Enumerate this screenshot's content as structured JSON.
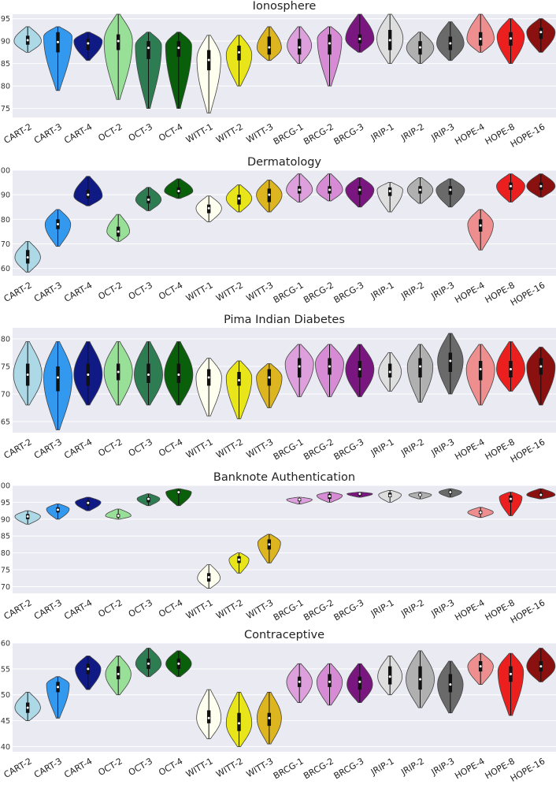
{
  "chart_data": [
    {
      "type": "violin",
      "title": "Ionosphere",
      "ylim": [
        73,
        96
      ],
      "yticks": [
        75,
        80,
        85,
        90,
        95
      ],
      "categories": [
        "CART-2",
        "CART-3",
        "CART-4",
        "OCT-2",
        "OCT-3",
        "OCT-4",
        "WITT-1",
        "WITT-2",
        "WITT-3",
        "BRCG-1",
        "BRCG-2",
        "BRCG-3",
        "JRIP-1",
        "JRIP-2",
        "JRIP-3",
        "HOPE-4",
        "HOPE-8",
        "HOPE-16"
      ],
      "series": [
        {
          "min": 87.5,
          "max": 93.2,
          "q1": 89.2,
          "median": 90.2,
          "q3": 91.2,
          "mode": 90.0,
          "wmax": 4.8
        },
        {
          "min": 79.0,
          "max": 93.2,
          "q1": 87.5,
          "median": 89.8,
          "q3": 92.0,
          "mode": 91.0,
          "wmax": 5.0
        },
        {
          "min": 85.7,
          "max": 92.0,
          "q1": 88.0,
          "median": 89.5,
          "q3": 90.5,
          "mode": 90.0,
          "wmax": 5.0
        },
        {
          "min": 77.0,
          "max": 96.0,
          "q1": 88.0,
          "median": 90.0,
          "q3": 91.5,
          "mode": 90.0,
          "wmax": 5.0
        },
        {
          "min": 75.0,
          "max": 92.0,
          "q1": 86.0,
          "median": 88.5,
          "q3": 90.0,
          "mode": 89.0,
          "wmax": 4.6
        },
        {
          "min": 75.0,
          "max": 92.0,
          "q1": 86.5,
          "median": 88.5,
          "q3": 90.0,
          "mode": 89.0,
          "wmax": 4.6
        },
        {
          "min": 74.0,
          "max": 91.3,
          "q1": 83.5,
          "median": 85.8,
          "q3": 88.0,
          "mode": 86.0,
          "wmax": 4.2
        },
        {
          "min": 80.0,
          "max": 91.3,
          "q1": 85.7,
          "median": 87.5,
          "q3": 89.0,
          "mode": 87.0,
          "wmax": 4.5
        },
        {
          "min": 85.7,
          "max": 93.2,
          "q1": 87.0,
          "median": 88.6,
          "q3": 91.0,
          "mode": 88.5,
          "wmax": 4.3
        },
        {
          "min": 85.0,
          "max": 93.2,
          "q1": 87.0,
          "median": 88.6,
          "q3": 90.5,
          "mode": 89.0,
          "wmax": 4.3
        },
        {
          "min": 80.0,
          "max": 93.2,
          "q1": 87.0,
          "median": 89.5,
          "q3": 91.5,
          "mode": 90.5,
          "wmax": 4.3
        },
        {
          "min": 87.5,
          "max": 96.0,
          "q1": 89.5,
          "median": 90.5,
          "q3": 91.5,
          "mode": 90.5,
          "wmax": 5.0
        },
        {
          "min": 85.0,
          "max": 96.0,
          "q1": 88.0,
          "median": 90.2,
          "q3": 92.5,
          "mode": 90.5,
          "wmax": 4.6
        },
        {
          "min": 85.0,
          "max": 92.0,
          "q1": 87.0,
          "median": 88.6,
          "q3": 90.0,
          "mode": 88.5,
          "wmax": 4.8
        },
        {
          "min": 85.7,
          "max": 94.3,
          "q1": 88.0,
          "median": 89.5,
          "q3": 91.0,
          "mode": 89.5,
          "wmax": 4.8
        },
        {
          "min": 87.5,
          "max": 96.0,
          "q1": 89.0,
          "median": 90.5,
          "q3": 92.0,
          "mode": 90.5,
          "wmax": 4.8
        },
        {
          "min": 85.0,
          "max": 95.0,
          "q1": 89.0,
          "median": 90.6,
          "q3": 92.0,
          "mode": 91.0,
          "wmax": 4.8
        },
        {
          "min": 87.5,
          "max": 95.0,
          "q1": 90.5,
          "median": 92.0,
          "q3": 93.0,
          "mode": 92.0,
          "wmax": 5.0
        }
      ]
    },
    {
      "type": "violin",
      "title": "Dermatology",
      "ylim": [
        57,
        100
      ],
      "yticks": [
        60,
        70,
        80,
        90,
        100
      ],
      "categories": [
        "CART-2",
        "CART-3",
        "CART-4",
        "OCT-2",
        "OCT-3",
        "OCT-4",
        "WITT-1",
        "WITT-2",
        "WITT-3",
        "BRCG-1",
        "BRCG-2",
        "BRCG-3",
        "JRIP-1",
        "JRIP-2",
        "JRIP-3",
        "HOPE-4",
        "HOPE-8",
        "HOPE-16"
      ],
      "series": [
        {
          "min": 58.5,
          "max": 71.0,
          "q1": 62.0,
          "median": 64.5,
          "q3": 67.5,
          "mode": 64.5,
          "wmax": 4.5
        },
        {
          "min": 69.0,
          "max": 84.0,
          "q1": 76.0,
          "median": 78.0,
          "q3": 80.0,
          "mode": 78.0,
          "wmax": 4.5
        },
        {
          "min": 85.5,
          "max": 97.5,
          "q1": 88.5,
          "median": 90.0,
          "q3": 92.0,
          "mode": 89.5,
          "wmax": 5.0
        },
        {
          "min": 71.0,
          "max": 82.0,
          "q1": 73.0,
          "median": 75.0,
          "q3": 77.0,
          "mode": 75.0,
          "wmax": 4.0
        },
        {
          "min": 83.5,
          "max": 93.0,
          "q1": 86.5,
          "median": 88.0,
          "q3": 89.5,
          "mode": 88.0,
          "wmax": 4.5
        },
        {
          "min": 88.5,
          "max": 96.5,
          "q1": 90.5,
          "median": 91.5,
          "q3": 93.0,
          "mode": 91.5,
          "wmax": 5.0
        },
        {
          "min": 79.0,
          "max": 89.5,
          "q1": 82.5,
          "median": 84.5,
          "q3": 86.0,
          "mode": 84.5,
          "wmax": 4.5
        },
        {
          "min": 83.0,
          "max": 94.0,
          "q1": 86.0,
          "median": 88.5,
          "q3": 90.0,
          "mode": 88.5,
          "wmax": 4.5
        },
        {
          "min": 83.0,
          "max": 96.0,
          "q1": 87.0,
          "median": 90.0,
          "q3": 92.5,
          "mode": 90.0,
          "wmax": 4.5
        },
        {
          "min": 87.0,
          "max": 98.5,
          "q1": 90.5,
          "median": 92.0,
          "q3": 93.5,
          "mode": 92.0,
          "wmax": 4.6
        },
        {
          "min": 87.5,
          "max": 98.5,
          "q1": 90.5,
          "median": 92.0,
          "q3": 93.5,
          "mode": 92.0,
          "wmax": 4.6
        },
        {
          "min": 85.0,
          "max": 97.0,
          "q1": 90.0,
          "median": 92.0,
          "q3": 93.5,
          "mode": 92.0,
          "wmax": 5.0
        },
        {
          "min": 83.0,
          "max": 95.0,
          "q1": 89.5,
          "median": 91.5,
          "q3": 93.0,
          "mode": 92.0,
          "wmax": 4.5
        },
        {
          "min": 86.5,
          "max": 97.0,
          "q1": 90.5,
          "median": 92.0,
          "q3": 93.5,
          "mode": 92.0,
          "wmax": 4.5
        },
        {
          "min": 85.0,
          "max": 96.5,
          "q1": 90.0,
          "median": 92.0,
          "q3": 93.5,
          "mode": 92.0,
          "wmax": 5.0
        },
        {
          "min": 67.5,
          "max": 84.0,
          "q1": 75.0,
          "median": 77.5,
          "q3": 80.0,
          "mode": 78.0,
          "wmax": 4.5
        },
        {
          "min": 87.0,
          "max": 98.5,
          "q1": 92.0,
          "median": 93.5,
          "q3": 95.0,
          "mode": 93.5,
          "wmax": 5.0
        },
        {
          "min": 89.0,
          "max": 98.5,
          "q1": 92.0,
          "median": 93.5,
          "q3": 95.0,
          "mode": 93.5,
          "wmax": 5.0
        }
      ]
    },
    {
      "type": "violin",
      "title": "Pima Indian Diabetes",
      "ylim": [
        63,
        82
      ],
      "yticks": [
        65,
        70,
        75,
        80
      ],
      "categories": [
        "CART-2",
        "CART-3",
        "CART-4",
        "OCT-2",
        "OCT-3",
        "OCT-4",
        "WITT-1",
        "WITT-2",
        "WITT-3",
        "BRCG-1",
        "BRCG-2",
        "BRCG-3",
        "JRIP-1",
        "JRIP-2",
        "JRIP-3",
        "HOPE-4",
        "HOPE-8",
        "HOPE-16"
      ],
      "series": [
        {
          "min": 68.0,
          "max": 79.5,
          "q1": 71.5,
          "median": 73.5,
          "q3": 75.5,
          "mode": 73.5,
          "wmax": 5.0
        },
        {
          "min": 63.5,
          "max": 79.5,
          "q1": 70.5,
          "median": 73.0,
          "q3": 75.0,
          "mode": 73.0,
          "wmax": 5.0
        },
        {
          "min": 68.0,
          "max": 79.5,
          "q1": 71.5,
          "median": 73.5,
          "q3": 75.5,
          "mode": 73.5,
          "wmax": 5.0
        },
        {
          "min": 68.0,
          "max": 79.5,
          "q1": 72.5,
          "median": 74.0,
          "q3": 75.5,
          "mode": 74.0,
          "wmax": 5.0
        },
        {
          "min": 68.0,
          "max": 79.5,
          "q1": 72.0,
          "median": 73.5,
          "q3": 75.5,
          "mode": 73.5,
          "wmax": 5.0
        },
        {
          "min": 68.0,
          "max": 79.5,
          "q1": 72.0,
          "median": 73.5,
          "q3": 75.5,
          "mode": 73.5,
          "wmax": 5.0
        },
        {
          "min": 66.0,
          "max": 76.5,
          "q1": 71.5,
          "median": 73.0,
          "q3": 74.5,
          "mode": 73.0,
          "wmax": 4.5
        },
        {
          "min": 65.5,
          "max": 76.0,
          "q1": 71.5,
          "median": 72.5,
          "q3": 74.0,
          "mode": 73.0,
          "wmax": 4.5
        },
        {
          "min": 67.5,
          "max": 75.5,
          "q1": 71.5,
          "median": 73.0,
          "q3": 74.5,
          "mode": 73.0,
          "wmax": 4.5
        },
        {
          "min": 69.5,
          "max": 79.0,
          "q1": 73.0,
          "median": 75.0,
          "q3": 76.5,
          "mode": 75.5,
          "wmax": 5.0
        },
        {
          "min": 69.5,
          "max": 79.0,
          "q1": 73.5,
          "median": 75.0,
          "q3": 76.5,
          "mode": 75.5,
          "wmax": 5.0
        },
        {
          "min": 69.5,
          "max": 79.0,
          "q1": 73.0,
          "median": 74.5,
          "q3": 76.0,
          "mode": 74.5,
          "wmax": 5.0
        },
        {
          "min": 70.5,
          "max": 77.5,
          "q1": 73.0,
          "median": 74.0,
          "q3": 75.5,
          "mode": 74.0,
          "wmax": 4.0
        },
        {
          "min": 68.5,
          "max": 79.0,
          "q1": 73.0,
          "median": 75.0,
          "q3": 76.5,
          "mode": 75.0,
          "wmax": 4.5
        },
        {
          "min": 70.0,
          "max": 81.0,
          "q1": 74.0,
          "median": 76.0,
          "q3": 77.5,
          "mode": 76.0,
          "wmax": 4.5
        },
        {
          "min": 68.0,
          "max": 79.0,
          "q1": 72.5,
          "median": 74.5,
          "q3": 76.0,
          "mode": 74.5,
          "wmax": 5.0
        },
        {
          "min": 70.5,
          "max": 79.5,
          "q1": 73.0,
          "median": 74.5,
          "q3": 76.0,
          "mode": 74.5,
          "wmax": 5.0
        },
        {
          "min": 68.0,
          "max": 78.5,
          "q1": 73.5,
          "median": 75.0,
          "q3": 76.5,
          "mode": 75.0,
          "wmax": 5.0
        }
      ]
    },
    {
      "type": "violin",
      "title": "Banknote Authentication",
      "ylim": [
        68,
        100
      ],
      "yticks": [
        70,
        75,
        80,
        85,
        90,
        95,
        100
      ],
      "categories": [
        "CART-2",
        "CART-3",
        "CART-4",
        "OCT-2",
        "OCT-3",
        "OCT-4",
        "WITT-1",
        "WITT-2",
        "WITT-3",
        "BRCG-1",
        "BRCG-2",
        "BRCG-3",
        "JRIP-1",
        "JRIP-2",
        "JRIP-3",
        "HOPE-4",
        "HOPE-8",
        "HOPE-16"
      ],
      "series": [
        {
          "min": 88.5,
          "max": 92.5,
          "q1": 90.0,
          "median": 90.8,
          "q3": 91.5,
          "mode": 90.8,
          "wmax": 4.5
        },
        {
          "min": 90.0,
          "max": 94.5,
          "q1": 92.0,
          "median": 92.8,
          "q3": 93.5,
          "mode": 93.0,
          "wmax": 4.0
        },
        {
          "min": 92.5,
          "max": 96.5,
          "q1": 94.0,
          "median": 94.8,
          "q3": 95.5,
          "mode": 95.0,
          "wmax": 4.5
        },
        {
          "min": 90.0,
          "max": 93.0,
          "q1": 90.5,
          "median": 91.0,
          "q3": 91.5,
          "mode": 91.0,
          "wmax": 4.5
        },
        {
          "min": 94.0,
          "max": 97.5,
          "q1": 95.0,
          "median": 96.0,
          "q3": 96.5,
          "mode": 96.0,
          "wmax": 4.0
        },
        {
          "min": 94.0,
          "max": 99.0,
          "q1": 97.5,
          "median": 98.0,
          "q3": 98.5,
          "mode": 98.0,
          "wmax": 4.5
        },
        {
          "min": 69.5,
          "max": 76.5,
          "q1": 71.5,
          "median": 72.8,
          "q3": 74.0,
          "mode": 72.5,
          "wmax": 4.0
        },
        {
          "min": 74.0,
          "max": 80.0,
          "q1": 77.0,
          "median": 78.0,
          "q3": 79.0,
          "mode": 78.0,
          "wmax": 3.5
        },
        {
          "min": 77.0,
          "max": 85.5,
          "q1": 81.0,
          "median": 82.5,
          "q3": 84.0,
          "mode": 83.0,
          "wmax": 4.0
        },
        {
          "min": 94.5,
          "max": 96.5,
          "q1": 95.3,
          "median": 95.8,
          "q3": 96.2,
          "mode": 95.8,
          "wmax": 4.5
        },
        {
          "min": 95.0,
          "max": 98.0,
          "q1": 96.0,
          "median": 96.8,
          "q3": 97.5,
          "mode": 97.0,
          "wmax": 4.5
        },
        {
          "min": 96.5,
          "max": 98.0,
          "q1": 97.0,
          "median": 97.5,
          "q3": 97.8,
          "mode": 97.5,
          "wmax": 4.5
        },
        {
          "min": 95.0,
          "max": 98.5,
          "q1": 96.5,
          "median": 97.0,
          "q3": 97.8,
          "mode": 97.2,
          "wmax": 4.0
        },
        {
          "min": 96.0,
          "max": 98.0,
          "q1": 96.8,
          "median": 97.2,
          "q3": 97.6,
          "mode": 97.2,
          "wmax": 4.0
        },
        {
          "min": 96.5,
          "max": 99.0,
          "q1": 97.5,
          "median": 98.0,
          "q3": 98.5,
          "mode": 98.0,
          "wmax": 4.0
        },
        {
          "min": 90.5,
          "max": 93.5,
          "q1": 91.5,
          "median": 92.0,
          "q3": 92.5,
          "mode": 92.0,
          "wmax": 4.5
        },
        {
          "min": 91.0,
          "max": 98.0,
          "q1": 95.0,
          "median": 96.0,
          "q3": 97.0,
          "mode": 96.5,
          "wmax": 4.0
        },
        {
          "min": 96.0,
          "max": 99.0,
          "q1": 96.8,
          "median": 97.2,
          "q3": 97.8,
          "mode": 97.2,
          "wmax": 5.0
        }
      ]
    },
    {
      "type": "violin",
      "title": "Contraceptive",
      "ylim": [
        39,
        60
      ],
      "yticks": [
        40,
        45,
        50,
        55,
        60
      ],
      "categories": [
        "CART-2",
        "CART-3",
        "CART-4",
        "OCT-2",
        "OCT-3",
        "OCT-4",
        "WITT-1",
        "WITT-2",
        "WITT-3",
        "BRCG-1",
        "BRCG-2",
        "BRCG-3",
        "JRIP-1",
        "JRIP-2",
        "JRIP-3",
        "HOPE-4",
        "HOPE-8",
        "HOPE-16"
      ],
      "series": [
        {
          "min": 45.0,
          "max": 50.5,
          "q1": 46.5,
          "median": 47.5,
          "q3": 48.5,
          "mode": 47.5,
          "wmax": 4.5
        },
        {
          "min": 45.5,
          "max": 53.5,
          "q1": 50.5,
          "median": 51.5,
          "q3": 52.5,
          "mode": 52.0,
          "wmax": 4.0
        },
        {
          "min": 51.0,
          "max": 57.5,
          "q1": 54.0,
          "median": 55.0,
          "q3": 56.0,
          "mode": 55.0,
          "wmax": 4.5
        },
        {
          "min": 50.0,
          "max": 57.5,
          "q1": 53.0,
          "median": 54.0,
          "q3": 55.5,
          "mode": 54.0,
          "wmax": 4.5
        },
        {
          "min": 53.5,
          "max": 59.0,
          "q1": 55.0,
          "median": 56.0,
          "q3": 57.0,
          "mode": 56.0,
          "wmax": 4.5
        },
        {
          "min": 53.5,
          "max": 58.5,
          "q1": 55.0,
          "median": 56.0,
          "q3": 57.0,
          "mode": 56.0,
          "wmax": 4.5
        },
        {
          "min": 41.5,
          "max": 51.0,
          "q1": 44.5,
          "median": 45.5,
          "q3": 47.0,
          "mode": 45.5,
          "wmax": 4.3
        },
        {
          "min": 40.0,
          "max": 50.5,
          "q1": 43.0,
          "median": 44.5,
          "q3": 46.5,
          "mode": 44.5,
          "wmax": 4.5
        },
        {
          "min": 40.5,
          "max": 50.5,
          "q1": 44.0,
          "median": 45.5,
          "q3": 46.5,
          "mode": 45.5,
          "wmax": 4.3
        },
        {
          "min": 48.5,
          "max": 56.0,
          "q1": 51.5,
          "median": 52.5,
          "q3": 53.5,
          "mode": 52.5,
          "wmax": 4.5
        },
        {
          "min": 48.0,
          "max": 56.0,
          "q1": 51.5,
          "median": 52.5,
          "q3": 54.0,
          "mode": 52.5,
          "wmax": 4.5
        },
        {
          "min": 48.5,
          "max": 56.0,
          "q1": 51.0,
          "median": 52.5,
          "q3": 53.5,
          "mode": 52.0,
          "wmax": 4.5
        },
        {
          "min": 50.0,
          "max": 57.5,
          "q1": 52.0,
          "median": 53.5,
          "q3": 55.5,
          "mode": 53.5,
          "wmax": 4.3
        },
        {
          "min": 47.5,
          "max": 58.5,
          "q1": 51.0,
          "median": 53.0,
          "q3": 55.5,
          "mode": 53.0,
          "wmax": 5.0
        },
        {
          "min": 46.5,
          "max": 56.5,
          "q1": 50.5,
          "median": 52.0,
          "q3": 54.0,
          "mode": 52.0,
          "wmax": 4.5
        },
        {
          "min": 52.0,
          "max": 58.0,
          "q1": 54.5,
          "median": 55.5,
          "q3": 56.5,
          "mode": 55.5,
          "wmax": 4.5
        },
        {
          "min": 46.0,
          "max": 58.0,
          "q1": 52.5,
          "median": 54.0,
          "q3": 55.5,
          "mode": 54.5,
          "wmax": 4.5
        },
        {
          "min": 52.5,
          "max": 59.0,
          "q1": 54.5,
          "median": 55.5,
          "q3": 56.5,
          "mode": 55.5,
          "wmax": 5.0
        }
      ]
    }
  ],
  "colors": {
    "background": "#eaeaf2",
    "grid": "#ffffff",
    "outline": "#444444",
    "box": "#111111",
    "median": "#ffffff",
    "categories": [
      "#add8e6",
      "#3399ee",
      "#101a85",
      "#98e098",
      "#2e7d52",
      "#0a5f0a",
      "#fffff0",
      "#e8e61a",
      "#dcb51f",
      "#dea0dd",
      "#d68bd4",
      "#7a1680",
      "#dedede",
      "#b0b0b0",
      "#6a6a6a",
      "#ef8e8e",
      "#ec1f1f",
      "#8b1010"
    ]
  }
}
